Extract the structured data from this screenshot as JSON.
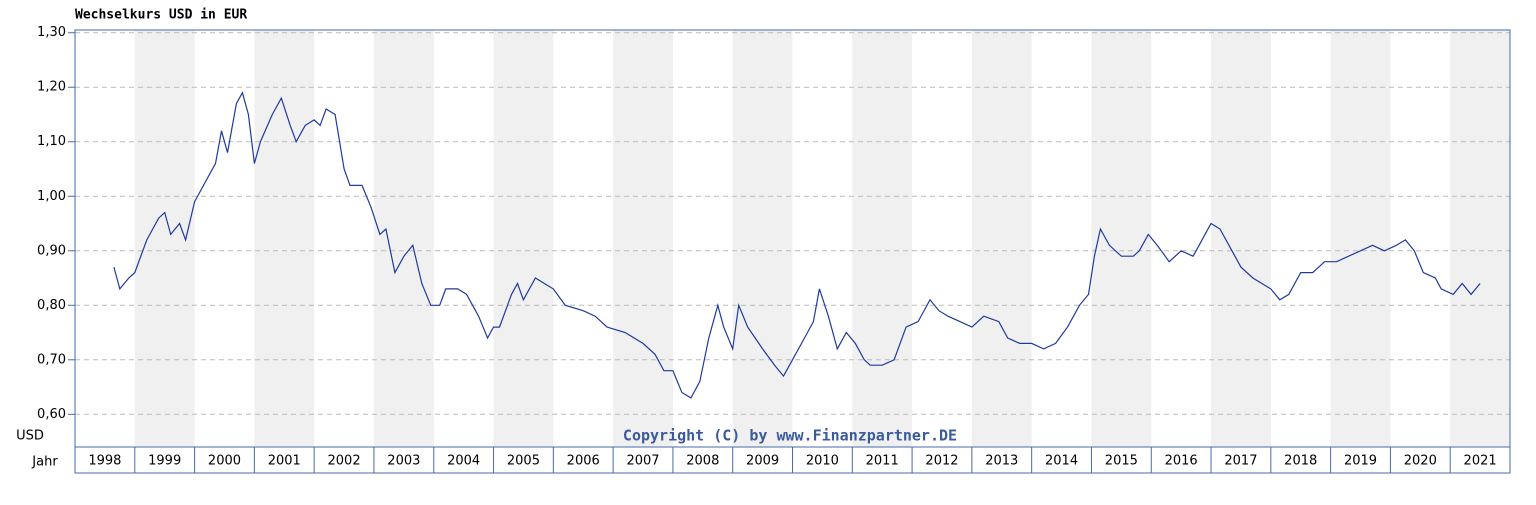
{
  "chart_data": {
    "type": "line",
    "title": "Wechselkurs USD in EUR",
    "y_label": "USD",
    "x_label": "Jahr",
    "annotation": "Copyright (C) by www.Finanzpartner.DE",
    "color": "#1f3aa0",
    "grid": true,
    "xlim": [
      1998,
      2022
    ],
    "xticks": [
      1998,
      1999,
      2000,
      2001,
      2002,
      2003,
      2004,
      2005,
      2006,
      2007,
      2008,
      2009,
      2010,
      2011,
      2012,
      2013,
      2014,
      2015,
      2016,
      2017,
      2018,
      2019,
      2020,
      2021
    ],
    "ylim": [
      0.54,
      1.305
    ],
    "yticks": [
      {
        "value": 0.6,
        "label": "0,60"
      },
      {
        "value": 0.7,
        "label": "0,70"
      },
      {
        "value": 0.8,
        "label": "0,80"
      },
      {
        "value": 0.9,
        "label": "0,90"
      },
      {
        "value": 1.0,
        "label": "1,00"
      },
      {
        "value": 1.1,
        "label": "1,10"
      },
      {
        "value": 1.2,
        "label": "1,20"
      },
      {
        "value": 1.3,
        "label": "1,30"
      }
    ],
    "x": [
      1998.65,
      1998.75,
      1998.9,
      1999.0,
      1999.2,
      1999.4,
      1999.5,
      1999.6,
      1999.75,
      1999.85,
      2000.0,
      2000.2,
      2000.35,
      2000.45,
      2000.55,
      2000.7,
      2000.8,
      2000.9,
      2001.0,
      2001.1,
      2001.3,
      2001.45,
      2001.6,
      2001.7,
      2001.85,
      2002.0,
      2002.1,
      2002.2,
      2002.35,
      2002.5,
      2002.6,
      2002.8,
      2002.95,
      2003.1,
      2003.2,
      2003.35,
      2003.5,
      2003.65,
      2003.8,
      2003.95,
      2004.1,
      2004.2,
      2004.4,
      2004.55,
      2004.75,
      2004.9,
      2005.0,
      2005.1,
      2005.3,
      2005.4,
      2005.5,
      2005.7,
      2005.85,
      2006.0,
      2006.2,
      2006.5,
      2006.7,
      2006.9,
      2007.2,
      2007.5,
      2007.7,
      2007.85,
      2008.0,
      2008.15,
      2008.3,
      2008.45,
      2008.6,
      2008.75,
      2008.85,
      2009.0,
      2009.1,
      2009.25,
      2009.5,
      2009.7,
      2009.85,
      2010.0,
      2010.2,
      2010.35,
      2010.45,
      2010.6,
      2010.75,
      2010.9,
      2011.05,
      2011.2,
      2011.3,
      2011.5,
      2011.7,
      2011.9,
      2012.1,
      2012.3,
      2012.45,
      2012.6,
      2012.8,
      2013.0,
      2013.2,
      2013.45,
      2013.6,
      2013.8,
      2014.0,
      2014.2,
      2014.4,
      2014.6,
      2014.8,
      2014.95,
      2015.05,
      2015.15,
      2015.3,
      2015.5,
      2015.7,
      2015.8,
      2015.95,
      2016.1,
      2016.3,
      2016.5,
      2016.7,
      2016.8,
      2017.0,
      2017.15,
      2017.35,
      2017.5,
      2017.7,
      2017.85,
      2018.0,
      2018.15,
      2018.3,
      2018.5,
      2018.7,
      2018.9,
      2019.1,
      2019.3,
      2019.5,
      2019.7,
      2019.9,
      2020.1,
      2020.25,
      2020.4,
      2020.55,
      2020.75,
      2020.85,
      2021.05,
      2021.2,
      2021.35,
      2021.5
    ],
    "values": [
      0.87,
      0.83,
      0.85,
      0.86,
      0.92,
      0.96,
      0.97,
      0.93,
      0.95,
      0.92,
      0.99,
      1.03,
      1.06,
      1.12,
      1.08,
      1.17,
      1.19,
      1.15,
      1.06,
      1.1,
      1.15,
      1.18,
      1.13,
      1.1,
      1.13,
      1.14,
      1.13,
      1.16,
      1.15,
      1.05,
      1.02,
      1.02,
      0.98,
      0.93,
      0.94,
      0.86,
      0.89,
      0.91,
      0.84,
      0.8,
      0.8,
      0.83,
      0.83,
      0.82,
      0.78,
      0.74,
      0.76,
      0.76,
      0.82,
      0.84,
      0.81,
      0.85,
      0.84,
      0.83,
      0.8,
      0.79,
      0.78,
      0.76,
      0.75,
      0.73,
      0.71,
      0.68,
      0.68,
      0.64,
      0.63,
      0.66,
      0.74,
      0.8,
      0.76,
      0.72,
      0.8,
      0.76,
      0.72,
      0.69,
      0.67,
      0.7,
      0.74,
      0.77,
      0.83,
      0.78,
      0.72,
      0.75,
      0.73,
      0.7,
      0.69,
      0.69,
      0.7,
      0.76,
      0.77,
      0.81,
      0.79,
      0.78,
      0.77,
      0.76,
      0.78,
      0.77,
      0.74,
      0.73,
      0.73,
      0.72,
      0.73,
      0.76,
      0.8,
      0.82,
      0.89,
      0.94,
      0.91,
      0.89,
      0.89,
      0.9,
      0.93,
      0.91,
      0.88,
      0.9,
      0.89,
      0.91,
      0.95,
      0.94,
      0.9,
      0.87,
      0.85,
      0.84,
      0.83,
      0.81,
      0.82,
      0.86,
      0.86,
      0.88,
      0.88,
      0.89,
      0.9,
      0.91,
      0.9,
      0.91,
      0.92,
      0.9,
      0.86,
      0.85,
      0.83,
      0.82,
      0.84,
      0.82,
      0.84
    ]
  }
}
